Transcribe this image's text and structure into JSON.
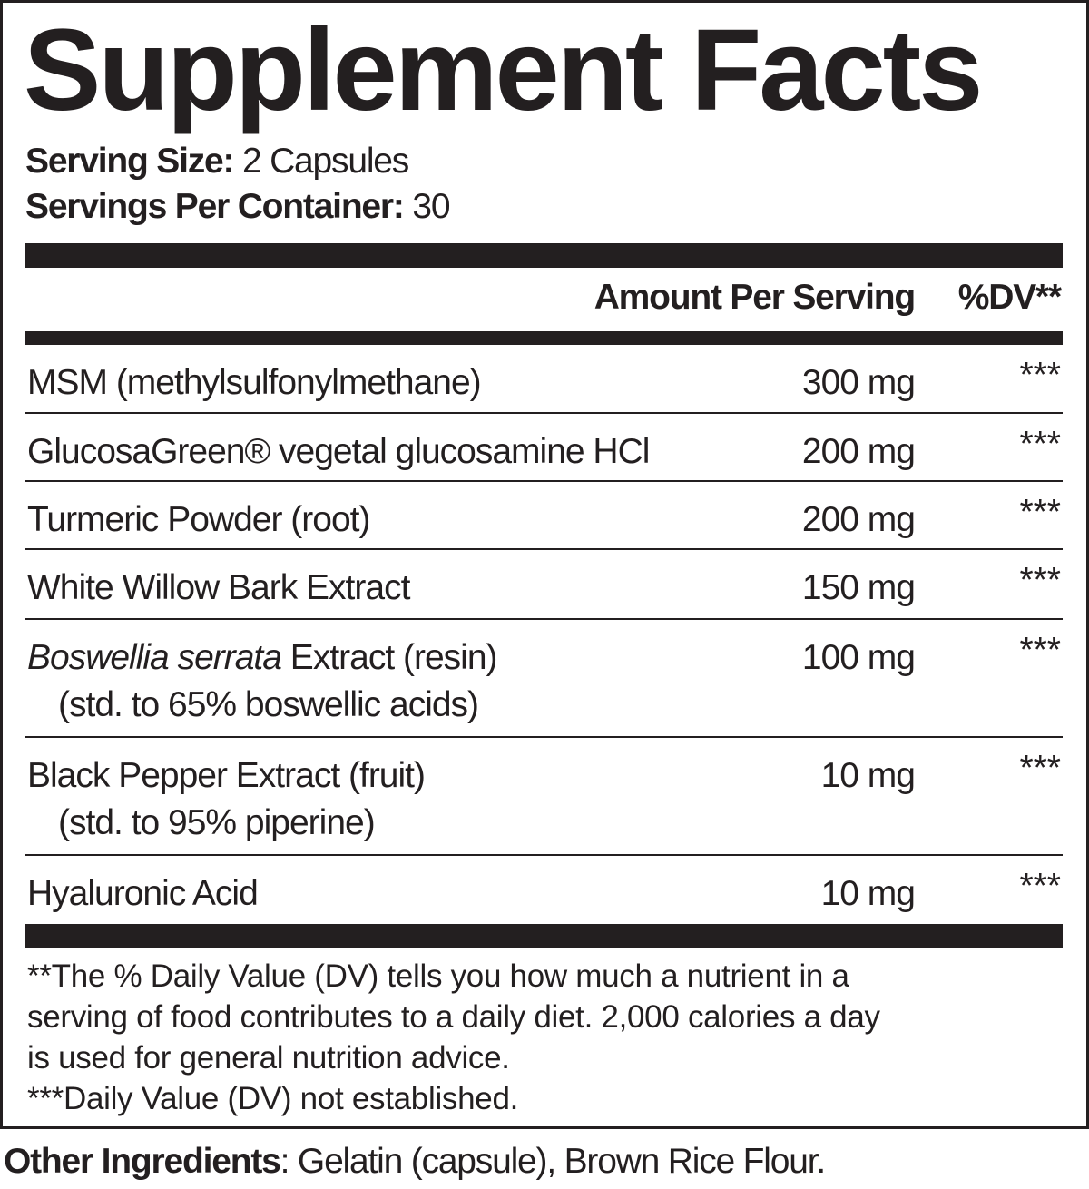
{
  "title": "Supplement Facts",
  "serving_size": {
    "label": "Serving Size:",
    "value": "2 Capsules"
  },
  "servings_per_container": {
    "label": "Servings Per Container:",
    "value": "30"
  },
  "header": {
    "amount": "Amount Per Serving",
    "dv": "%DV**"
  },
  "rows": [
    {
      "name": "MSM (methylsulfonylmethane)",
      "amount": "300 mg",
      "dv": "***"
    },
    {
      "name": "GlucosaGreen® vegetal glucosamine HCl",
      "amount": "200 mg",
      "dv": "***"
    },
    {
      "name": "Turmeric Powder (root)",
      "amount": "200 mg",
      "dv": "***"
    },
    {
      "name": "White Willow Bark Extract",
      "amount": "150 mg",
      "dv": "***"
    },
    {
      "name_italic": "Boswellia serrata",
      "name": " Extract (resin)",
      "sub": "(std. to 65% boswellic acids)",
      "amount": "100 mg",
      "dv": "***"
    },
    {
      "name": "Black Pepper Extract (fruit)",
      "sub": "(std. to 95% piperine)",
      "amount": "10 mg",
      "dv": "***"
    },
    {
      "name": "Hyaluronic Acid",
      "amount": "10 mg",
      "dv": "***"
    }
  ],
  "footnotes": [
    "**The % Daily Value (DV) tells you how much a nutrient in a",
    "serving of food contributes to a daily diet. 2,000 calories a day",
    "is used for general nutrition advice.",
    "***Daily Value (DV) not established."
  ],
  "other_ingredients": {
    "label": "Other Ingredients",
    "value": ": Gelatin (capsule), Brown Rice Flour."
  }
}
